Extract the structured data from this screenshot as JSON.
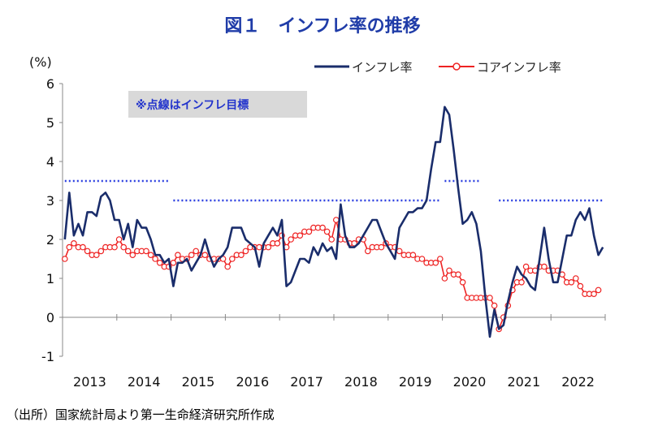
{
  "title": "図１　インフレ率の推移",
  "source": "（出所）国家統計局より第一生命経済研究所作成",
  "note": "※点線はインフレ目標",
  "colors": {
    "inflation": "#1a2d6b",
    "core": "#ee2222",
    "target": "#2b3fe0",
    "note_bg": "#d9d9d9"
  },
  "chart_data": {
    "type": "line",
    "yunit": "(%)",
    "ylim": [
      -1,
      6
    ],
    "yticks": [
      "6",
      "5",
      "4",
      "3",
      "2",
      "1",
      "0",
      "-1"
    ],
    "xticks": [
      "2013",
      "2014",
      "2015",
      "2016",
      "2017",
      "2018",
      "2019",
      "2020",
      "2021",
      "2022"
    ],
    "legend_position": "top-right",
    "start": "2013-01",
    "series": [
      {
        "name": "インフレ率",
        "values": [
          2.0,
          3.2,
          2.1,
          2.4,
          2.1,
          2.7,
          2.7,
          2.6,
          3.1,
          3.2,
          3.0,
          2.5,
          2.5,
          2.0,
          2.4,
          1.8,
          2.5,
          2.3,
          2.3,
          2.0,
          1.6,
          1.6,
          1.4,
          1.5,
          0.8,
          1.4,
          1.4,
          1.5,
          1.2,
          1.4,
          1.6,
          2.0,
          1.6,
          1.3,
          1.5,
          1.6,
          1.8,
          2.3,
          2.3,
          2.3,
          2.0,
          1.9,
          1.8,
          1.3,
          1.9,
          2.1,
          2.3,
          2.1,
          2.5,
          0.8,
          0.9,
          1.2,
          1.5,
          1.5,
          1.4,
          1.8,
          1.6,
          1.9,
          1.7,
          1.8,
          1.5,
          2.9,
          2.1,
          1.8,
          1.8,
          1.9,
          2.1,
          2.3,
          2.5,
          2.5,
          2.2,
          1.9,
          1.7,
          1.5,
          2.3,
          2.5,
          2.7,
          2.7,
          2.8,
          2.8,
          3.0,
          3.8,
          4.5,
          4.5,
          5.4,
          5.2,
          4.3,
          3.3,
          2.4,
          2.5,
          2.7,
          2.4,
          1.7,
          0.5,
          -0.5,
          0.2,
          -0.3,
          -0.2,
          0.4,
          0.9,
          1.3,
          1.1,
          1.0,
          0.8,
          0.7,
          1.5,
          2.3,
          1.5,
          0.9,
          0.9,
          1.5,
          2.1,
          2.1,
          2.5,
          2.7,
          2.5,
          2.8,
          2.1,
          1.6,
          1.8
        ]
      },
      {
        "name": "コアインフレ率",
        "values": [
          1.5,
          1.8,
          1.9,
          1.8,
          1.8,
          1.7,
          1.6,
          1.6,
          1.7,
          1.8,
          1.8,
          1.8,
          2.0,
          1.8,
          1.7,
          1.6,
          1.7,
          1.7,
          1.7,
          1.6,
          1.5,
          1.4,
          1.3,
          1.3,
          1.4,
          1.6,
          1.5,
          1.5,
          1.6,
          1.7,
          1.6,
          1.6,
          1.5,
          1.5,
          1.5,
          1.5,
          1.3,
          1.5,
          1.6,
          1.6,
          1.7,
          1.8,
          1.8,
          1.8,
          1.8,
          1.8,
          1.9,
          1.9,
          2.1,
          1.8,
          2.0,
          2.1,
          2.1,
          2.2,
          2.2,
          2.3,
          2.3,
          2.3,
          2.2,
          2.0,
          2.5,
          2.0,
          2.0,
          1.9,
          1.9,
          2.0,
          2.0,
          1.7,
          1.8,
          1.8,
          1.8,
          1.9,
          1.8,
          1.8,
          1.7,
          1.6,
          1.6,
          1.6,
          1.5,
          1.5,
          1.4,
          1.4,
          1.4,
          1.5,
          1.0,
          1.2,
          1.1,
          1.1,
          0.9,
          0.5,
          0.5,
          0.5,
          0.5,
          0.5,
          0.5,
          0.3,
          -0.3,
          0.0,
          0.3,
          0.7,
          0.9,
          0.9,
          1.3,
          1.2,
          1.2,
          1.3,
          1.3,
          1.2,
          1.2,
          1.2,
          1.1,
          0.9,
          0.9,
          1.0,
          0.8,
          0.6,
          0.6,
          0.6,
          0.7
        ]
      }
    ],
    "targets": [
      {
        "from": "2013-01",
        "to": "2014-12",
        "value": 3.5
      },
      {
        "from": "2015-01",
        "to": "2019-12",
        "value": 3.0
      },
      {
        "from": "2020-01",
        "to": "2020-09",
        "value": 3.5
      },
      {
        "from": "2021-01",
        "to": "2022-12",
        "value": 3.0
      }
    ]
  }
}
